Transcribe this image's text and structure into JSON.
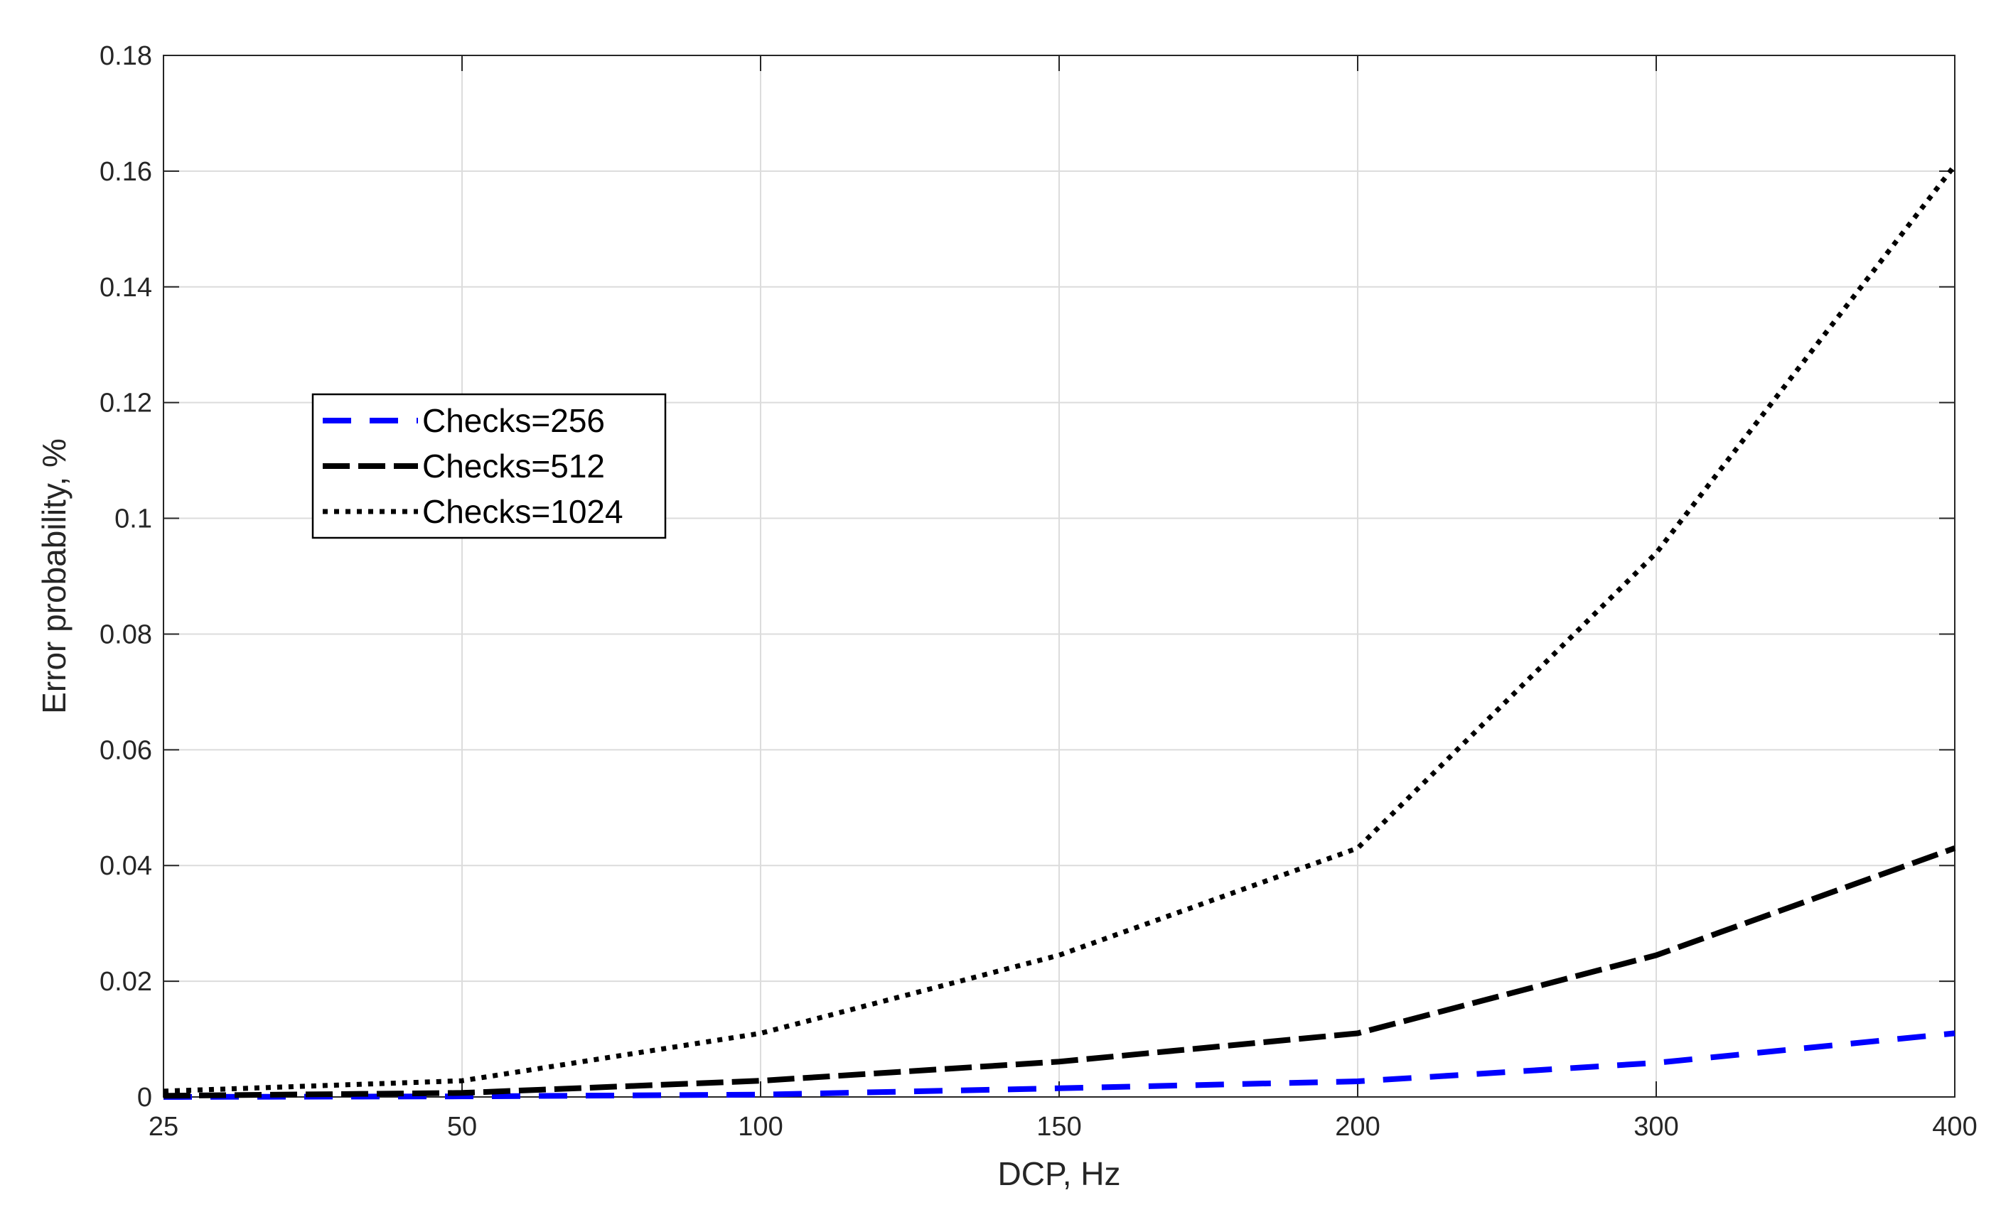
{
  "chart_data": {
    "type": "line",
    "xlabel": "DCP, Hz",
    "ylabel": "Error probability, %",
    "categories": [
      "25",
      "50",
      "100",
      "150",
      "200",
      "300",
      "400"
    ],
    "ylim": [
      0,
      0.18
    ],
    "yticks": [
      "0",
      "0.02",
      "0.04",
      "0.06",
      "0.08",
      "0.1",
      "0.12",
      "0.14",
      "0.16",
      "0.18"
    ],
    "grid": true,
    "legend_position": "upper-left",
    "series": [
      {
        "name": "Checks=256",
        "style": "dashed",
        "color": "#0000ff",
        "values": [
          0,
          0.0001,
          0.0004,
          0.0015,
          0.0027,
          0.0059,
          0.011
        ]
      },
      {
        "name": "Checks=512",
        "style": "dashed",
        "color": "#000000",
        "values": [
          0.0002,
          0.0007,
          0.0028,
          0.0061,
          0.011,
          0.0245,
          0.043
        ]
      },
      {
        "name": "Checks=1024",
        "style": "dotted",
        "color": "#000000",
        "values": [
          0.001,
          0.0028,
          0.011,
          0.0245,
          0.043,
          0.094,
          0.161
        ]
      }
    ]
  }
}
